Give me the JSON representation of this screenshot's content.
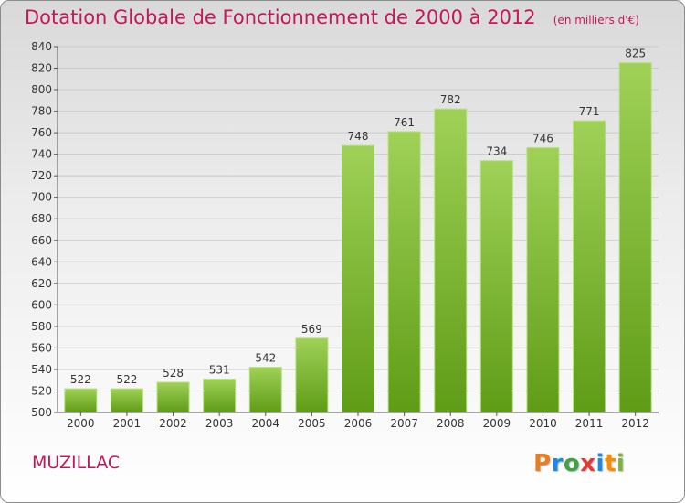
{
  "title": "Dotation Globale de Fonctionnement de 2000 à 2012",
  "subtitle": "(en milliers d'€)",
  "town": "MUZILLAC",
  "brand": {
    "letters": [
      "P",
      "r",
      "o",
      "x",
      "i",
      "t",
      "i"
    ],
    "colors": [
      "#e67e22",
      "#1e88e5",
      "#43a047",
      "#e53935",
      "#1e88e5",
      "#fb8c00",
      "#7cb342"
    ]
  },
  "chart_data": {
    "type": "bar",
    "categories": [
      "2000",
      "2001",
      "2002",
      "2003",
      "2004",
      "2005",
      "2006",
      "2007",
      "2008",
      "2009",
      "2010",
      "2011",
      "2012"
    ],
    "values": [
      522,
      522,
      528,
      531,
      542,
      569,
      748,
      761,
      782,
      734,
      746,
      771,
      825
    ],
    "title": "Dotation Globale de Fonctionnement de 2000 à 2012",
    "subtitle": "(en milliers d'€)",
    "xlabel": "",
    "ylabel": "",
    "ylim": [
      500,
      840
    ],
    "yticks": [
      500,
      520,
      540,
      560,
      580,
      600,
      620,
      640,
      660,
      680,
      700,
      720,
      740,
      760,
      780,
      800,
      820,
      840
    ],
    "grid": true,
    "bar_color": "#8dc63f"
  }
}
